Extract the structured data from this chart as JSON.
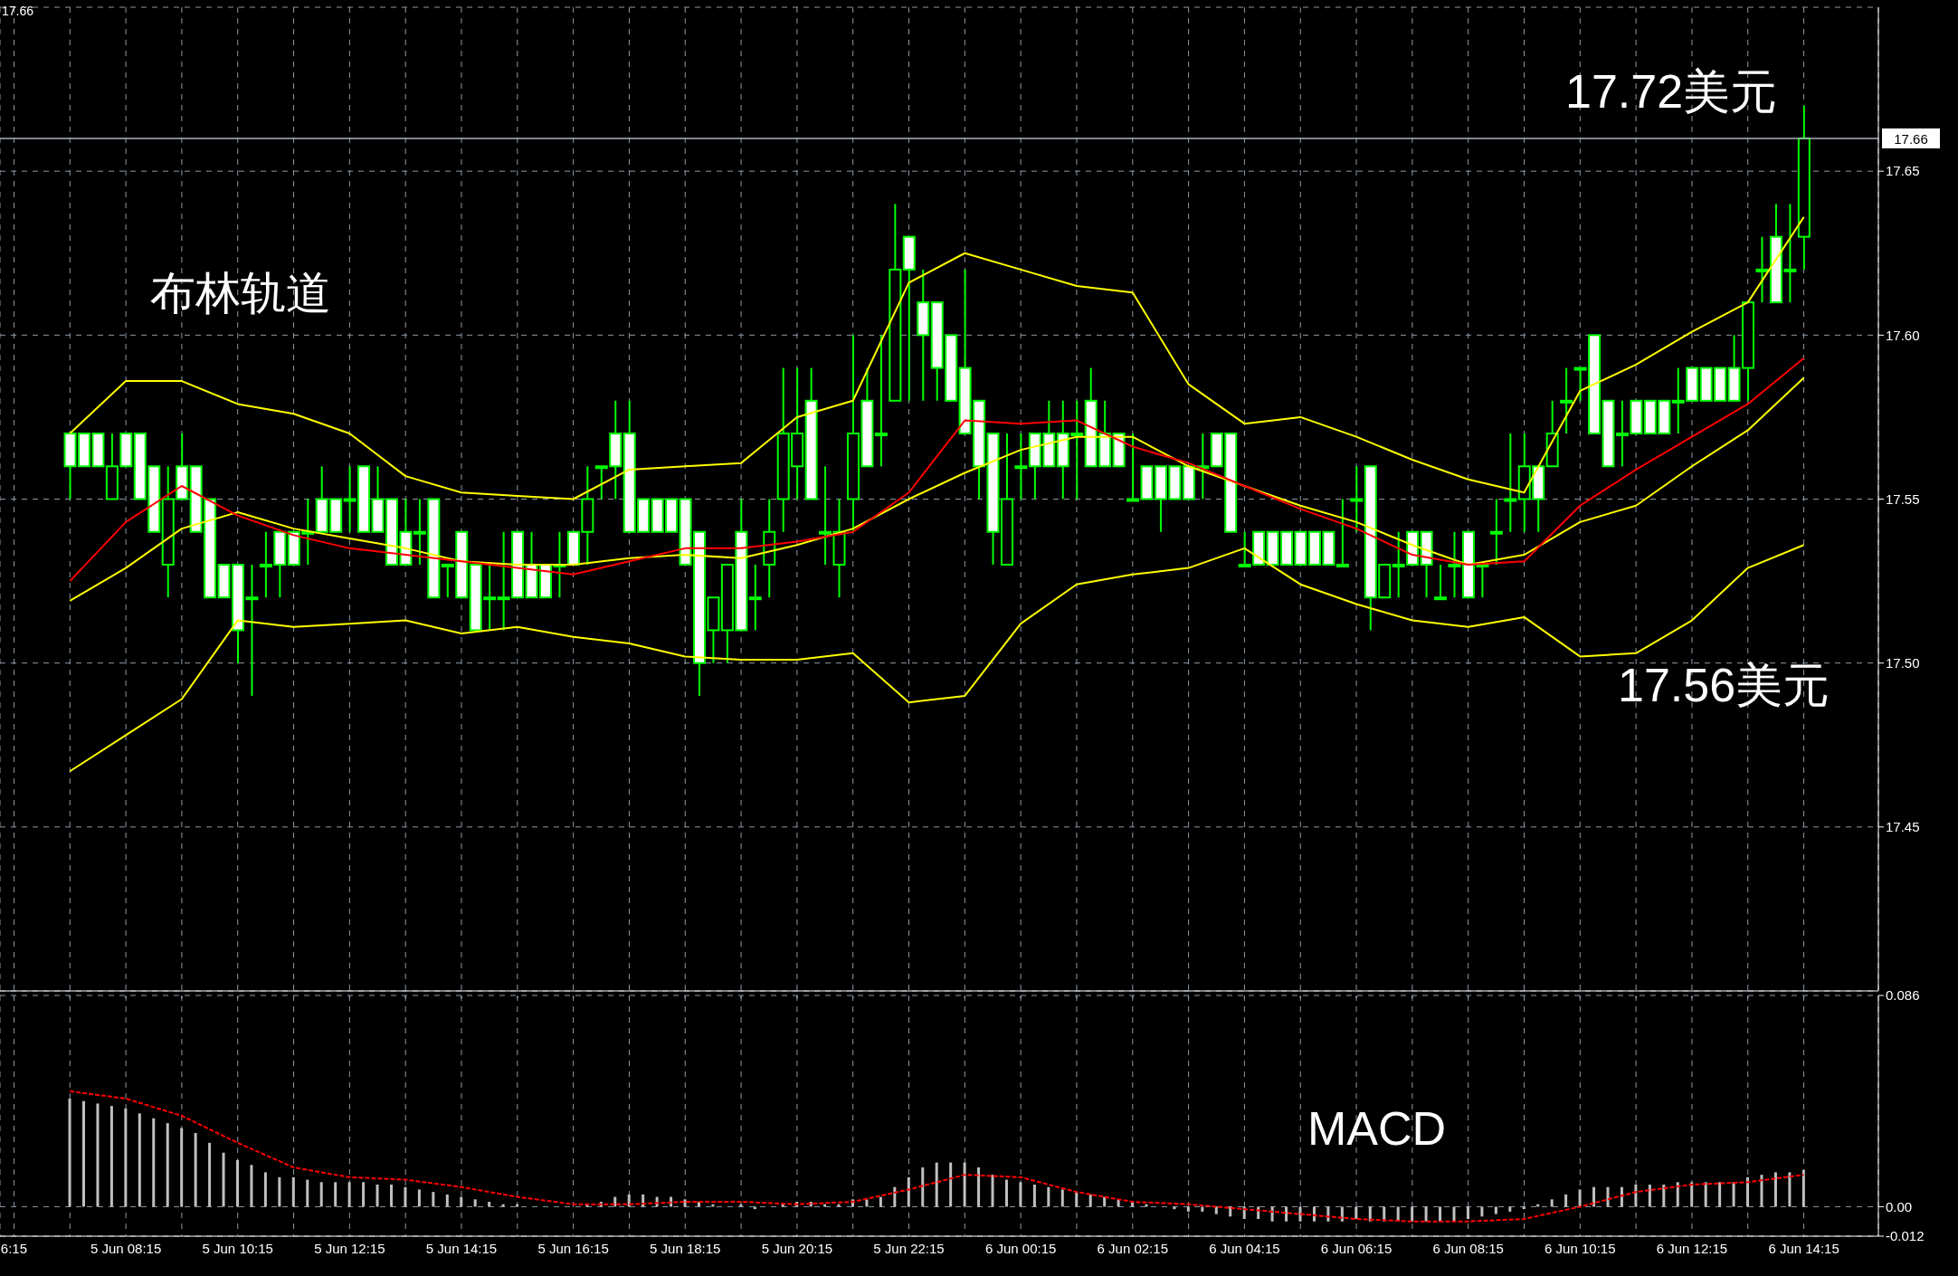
{
  "chart_data": [
    {
      "type": "candlestick",
      "color": "#00ff00",
      "x": [
        "--06-05T07:15",
        "--06-05T07:30",
        "--06-05T07:45",
        "--06-05T08:00",
        "--06-05T08:15",
        "--06-05T08:30",
        "--06-05T08:45",
        "--06-05T09:00",
        "--06-05T09:15",
        "--06-05T09:30",
        "--06-05T09:45",
        "--06-05T10:00",
        "--06-05T10:15",
        "--06-05T10:30",
        "--06-05T10:45",
        "--06-05T11:00",
        "--06-05T11:15",
        "--06-05T11:30",
        "--06-05T11:45",
        "--06-05T12:00",
        "--06-05T12:15",
        "--06-05T12:30",
        "--06-05T12:45",
        "--06-05T13:00",
        "--06-05T13:15",
        "--06-05T13:30",
        "--06-05T13:45",
        "--06-05T14:00",
        "--06-05T14:15",
        "--06-05T14:30",
        "--06-05T14:45",
        "--06-05T15:00",
        "--06-05T15:15",
        "--06-05T15:30",
        "--06-05T15:45",
        "--06-05T16:00",
        "--06-05T16:15",
        "--06-05T16:30",
        "--06-05T16:45",
        "--06-05T17:00",
        "--06-05T17:15",
        "--06-05T17:30",
        "--06-05T17:45",
        "--06-05T18:00",
        "--06-05T18:15",
        "--06-05T18:30",
        "--06-05T18:45",
        "--06-05T19:00",
        "--06-05T19:15",
        "--06-05T19:30",
        "--06-05T19:45",
        "--06-05T20:00",
        "--06-05T20:15",
        "--06-05T20:30",
        "--06-05T20:45",
        "--06-05T21:00",
        "--06-05T21:15",
        "--06-05T21:30",
        "--06-05T21:45",
        "--06-05T22:00",
        "--06-05T22:15",
        "--06-05T22:30",
        "--06-05T22:45",
        "--06-05T23:00",
        "--06-05T23:15",
        "--06-05T23:30",
        "--06-05T23:45",
        "--06-06T00:00",
        "--06-06T00:15",
        "--06-06T00:30",
        "--06-06T00:45",
        "--06-06T01:00",
        "--06-06T01:15",
        "--06-06T01:30",
        "--06-06T01:45",
        "--06-06T02:00",
        "--06-06T02:15",
        "--06-06T02:30",
        "--06-06T02:45",
        "--06-06T03:00",
        "--06-06T03:15",
        "--06-06T03:30",
        "--06-06T03:45",
        "--06-06T04:00",
        "--06-06T04:15",
        "--06-06T04:30",
        "--06-06T04:45",
        "--06-06T05:00",
        "--06-06T05:15",
        "--06-06T05:30",
        "--06-06T05:45",
        "--06-06T06:00",
        "--06-06T06:15",
        "--06-06T06:30",
        "--06-06T06:45",
        "--06-06T07:00",
        "--06-06T07:15",
        "--06-06T07:30",
        "--06-06T07:45",
        "--06-06T08:00",
        "--06-06T08:15",
        "--06-06T08:30",
        "--06-06T08:45",
        "--06-06T09:00",
        "--06-06T09:15",
        "--06-06T09:30",
        "--06-06T09:45",
        "--06-06T10:00",
        "--06-06T10:15",
        "--06-06T10:30",
        "--06-06T10:45",
        "--06-06T11:00",
        "--06-06T11:15",
        "--06-06T11:30",
        "--06-06T11:45",
        "--06-06T12:00",
        "--06-06T12:15",
        "--06-06T12:30",
        "--06-06T12:45",
        "--06-06T13:00",
        "--06-06T13:15",
        "--06-06T13:30",
        "--06-06T13:45",
        "--06-06T14:00",
        "--06-06T14:15"
      ],
      "ohlc": [
        [
          17.57,
          17.57,
          17.55,
          17.56
        ],
        [
          17.57,
          17.57,
          17.56,
          17.56
        ],
        [
          17.57,
          17.57,
          17.56,
          17.56
        ],
        [
          17.55,
          17.57,
          17.55,
          17.56
        ],
        [
          17.57,
          17.57,
          17.56,
          17.56
        ],
        [
          17.57,
          17.57,
          17.55,
          17.55
        ],
        [
          17.56,
          17.56,
          17.54,
          17.54
        ],
        [
          17.53,
          17.56,
          17.52,
          17.55
        ],
        [
          17.56,
          17.57,
          17.55,
          17.55
        ],
        [
          17.56,
          17.56,
          17.54,
          17.54
        ],
        [
          17.55,
          17.55,
          17.52,
          17.52
        ],
        [
          17.53,
          17.53,
          17.52,
          17.52
        ],
        [
          17.53,
          17.53,
          17.5,
          17.51
        ],
        [
          17.52,
          17.53,
          17.49,
          17.52
        ],
        [
          17.53,
          17.54,
          17.52,
          17.53
        ],
        [
          17.54,
          17.54,
          17.52,
          17.53
        ],
        [
          17.54,
          17.54,
          17.53,
          17.53
        ],
        [
          17.54,
          17.55,
          17.53,
          17.54
        ],
        [
          17.55,
          17.56,
          17.54,
          17.54
        ],
        [
          17.55,
          17.55,
          17.54,
          17.54
        ],
        [
          17.55,
          17.56,
          17.54,
          17.55
        ],
        [
          17.56,
          17.56,
          17.54,
          17.54
        ],
        [
          17.55,
          17.56,
          17.54,
          17.54
        ],
        [
          17.55,
          17.55,
          17.53,
          17.53
        ],
        [
          17.54,
          17.55,
          17.53,
          17.53
        ],
        [
          17.54,
          17.55,
          17.53,
          17.54
        ],
        [
          17.55,
          17.55,
          17.52,
          17.52
        ],
        [
          17.53,
          17.53,
          17.52,
          17.53
        ],
        [
          17.54,
          17.54,
          17.52,
          17.52
        ],
        [
          17.53,
          17.53,
          17.51,
          17.51
        ],
        [
          17.52,
          17.53,
          17.51,
          17.52
        ],
        [
          17.52,
          17.54,
          17.51,
          17.52
        ],
        [
          17.54,
          17.54,
          17.52,
          17.52
        ],
        [
          17.53,
          17.54,
          17.52,
          17.52
        ],
        [
          17.53,
          17.53,
          17.52,
          17.52
        ],
        [
          17.53,
          17.54,
          17.52,
          17.53
        ],
        [
          17.54,
          17.54,
          17.53,
          17.53
        ],
        [
          17.54,
          17.56,
          17.53,
          17.55
        ],
        [
          17.56,
          17.56,
          17.55,
          17.56
        ],
        [
          17.57,
          17.58,
          17.55,
          17.56
        ],
        [
          17.57,
          17.58,
          17.54,
          17.54
        ],
        [
          17.55,
          17.55,
          17.54,
          17.54
        ],
        [
          17.55,
          17.55,
          17.54,
          17.54
        ],
        [
          17.55,
          17.55,
          17.54,
          17.54
        ],
        [
          17.55,
          17.55,
          17.53,
          17.53
        ],
        [
          17.54,
          17.54,
          17.49,
          17.5
        ],
        [
          17.51,
          17.52,
          17.5,
          17.52
        ],
        [
          17.51,
          17.53,
          17.5,
          17.53
        ],
        [
          17.54,
          17.55,
          17.51,
          17.51
        ],
        [
          17.52,
          17.53,
          17.51,
          17.52
        ],
        [
          17.53,
          17.55,
          17.52,
          17.54
        ],
        [
          17.55,
          17.59,
          17.54,
          17.57
        ],
        [
          17.56,
          17.59,
          17.55,
          17.57
        ],
        [
          17.58,
          17.59,
          17.55,
          17.55
        ],
        [
          17.54,
          17.56,
          17.53,
          17.54
        ],
        [
          17.53,
          17.55,
          17.52,
          17.54
        ],
        [
          17.55,
          17.6,
          17.54,
          17.57
        ],
        [
          17.58,
          17.59,
          17.56,
          17.56
        ],
        [
          17.57,
          17.6,
          17.56,
          17.57
        ],
        [
          17.58,
          17.64,
          17.58,
          17.62
        ],
        [
          17.63,
          17.63,
          17.58,
          17.62
        ],
        [
          17.61,
          17.62,
          17.58,
          17.6
        ],
        [
          17.61,
          17.61,
          17.58,
          17.59
        ],
        [
          17.6,
          17.6,
          17.58,
          17.58
        ],
        [
          17.59,
          17.62,
          17.57,
          17.57
        ],
        [
          17.58,
          17.58,
          17.55,
          17.56
        ],
        [
          17.57,
          17.57,
          17.53,
          17.54
        ],
        [
          17.53,
          17.57,
          17.53,
          17.55
        ],
        [
          17.56,
          17.57,
          17.55,
          17.56
        ],
        [
          17.57,
          17.57,
          17.55,
          17.56
        ],
        [
          17.57,
          17.58,
          17.56,
          17.56
        ],
        [
          17.57,
          17.58,
          17.55,
          17.56
        ],
        [
          17.57,
          17.58,
          17.55,
          17.57
        ],
        [
          17.58,
          17.59,
          17.56,
          17.56
        ],
        [
          17.57,
          17.58,
          17.56,
          17.56
        ],
        [
          17.57,
          17.57,
          17.56,
          17.56
        ],
        [
          17.55,
          17.57,
          17.55,
          17.55
        ],
        [
          17.56,
          17.56,
          17.55,
          17.55
        ],
        [
          17.56,
          17.56,
          17.54,
          17.55
        ],
        [
          17.56,
          17.56,
          17.55,
          17.55
        ],
        [
          17.56,
          17.56,
          17.55,
          17.55
        ],
        [
          17.56,
          17.57,
          17.55,
          17.56
        ],
        [
          17.57,
          17.57,
          17.56,
          17.56
        ],
        [
          17.57,
          17.57,
          17.54,
          17.54
        ],
        [
          17.53,
          17.54,
          17.53,
          17.53
        ],
        [
          17.54,
          17.54,
          17.53,
          17.53
        ],
        [
          17.54,
          17.54,
          17.53,
          17.53
        ],
        [
          17.54,
          17.54,
          17.53,
          17.53
        ],
        [
          17.54,
          17.54,
          17.53,
          17.53
        ],
        [
          17.54,
          17.54,
          17.53,
          17.53
        ],
        [
          17.54,
          17.54,
          17.53,
          17.53
        ],
        [
          17.53,
          17.55,
          17.53,
          17.53
        ],
        [
          17.55,
          17.56,
          17.54,
          17.55
        ],
        [
          17.56,
          17.56,
          17.51,
          17.52
        ],
        [
          17.52,
          17.53,
          17.52,
          17.53
        ],
        [
          17.53,
          17.54,
          17.52,
          17.53
        ],
        [
          17.54,
          17.54,
          17.53,
          17.53
        ],
        [
          17.54,
          17.54,
          17.52,
          17.53
        ],
        [
          17.52,
          17.53,
          17.52,
          17.52
        ],
        [
          17.53,
          17.54,
          17.52,
          17.53
        ],
        [
          17.54,
          17.54,
          17.52,
          17.52
        ],
        [
          17.53,
          17.53,
          17.52,
          17.53
        ],
        [
          17.54,
          17.55,
          17.53,
          17.54
        ],
        [
          17.55,
          17.57,
          17.54,
          17.55
        ],
        [
          17.55,
          17.57,
          17.54,
          17.56
        ],
        [
          17.56,
          17.56,
          17.54,
          17.55
        ],
        [
          17.56,
          17.58,
          17.56,
          17.57
        ],
        [
          17.58,
          17.59,
          17.57,
          17.58
        ],
        [
          17.59,
          17.59,
          17.58,
          17.59
        ],
        [
          17.6,
          17.6,
          17.57,
          17.57
        ],
        [
          17.58,
          17.58,
          17.56,
          17.56
        ],
        [
          17.57,
          17.58,
          17.56,
          17.57
        ],
        [
          17.58,
          17.58,
          17.57,
          17.57
        ],
        [
          17.58,
          17.58,
          17.57,
          17.57
        ],
        [
          17.58,
          17.58,
          17.57,
          17.57
        ],
        [
          17.58,
          17.59,
          17.57,
          17.58
        ],
        [
          17.59,
          17.59,
          17.58,
          17.58
        ],
        [
          17.59,
          17.59,
          17.58,
          17.58
        ],
        [
          17.59,
          17.59,
          17.58,
          17.58
        ],
        [
          17.59,
          17.6,
          17.58,
          17.58
        ],
        [
          17.59,
          17.61,
          17.58,
          17.61
        ],
        [
          17.62,
          17.63,
          17.61,
          17.62
        ],
        [
          17.63,
          17.64,
          17.61,
          17.61
        ],
        [
          17.62,
          17.64,
          17.61,
          17.62
        ],
        [
          17.63,
          17.67,
          17.62,
          17.66
        ]
      ],
      "series": [
        {
          "type": "line",
          "color": "#ffff00",
          "x": [
            "--06-05T07:15",
            "--06-05T08:15",
            "--06-05T09:15",
            "--06-05T10:15",
            "--06-05T11:15",
            "--06-05T12:15",
            "--06-05T13:15",
            "--06-05T14:15",
            "--06-05T15:15",
            "--06-05T16:15",
            "--06-05T17:15",
            "--06-05T18:15",
            "--06-05T19:15",
            "--06-05T20:15",
            "--06-05T21:15",
            "--06-05T22:15",
            "--06-05T23:15",
            "--06-06T00:15",
            "--06-06T01:15",
            "--06-06T02:15",
            "--06-06T03:15",
            "--06-06T04:15",
            "--06-06T05:15",
            "--06-06T06:15",
            "--06-06T07:15",
            "--06-06T08:15",
            "--06-06T09:15",
            "--06-06T10:15",
            "--06-06T11:15",
            "--06-06T12:15",
            "--06-06T13:15",
            "--06-06T14:15"
          ],
          "values": [
            17.57,
            17.586,
            17.586,
            17.579,
            17.576,
            17.57,
            17.557,
            17.552,
            17.551,
            17.55,
            17.559,
            17.56,
            17.561,
            17.575,
            17.58,
            17.616,
            17.625,
            17.62,
            17.615,
            17.613,
            17.585,
            17.573,
            17.575,
            17.569,
            17.562,
            17.556,
            17.552,
            17.583,
            17.591,
            17.601,
            17.61,
            17.636
          ]
        },
        {
          "type": "line",
          "color": "#ffff00",
          "x": [
            "--06-05T07:15",
            "--06-05T08:15",
            "--06-05T09:15",
            "--06-05T10:15",
            "--06-05T11:15",
            "--06-05T12:15",
            "--06-05T13:15",
            "--06-05T14:15",
            "--06-05T15:15",
            "--06-05T16:15",
            "--06-05T17:15",
            "--06-05T18:15",
            "--06-05T19:15",
            "--06-05T20:15",
            "--06-05T21:15",
            "--06-05T22:15",
            "--06-05T23:15",
            "--06-06T00:15",
            "--06-06T01:15",
            "--06-06T02:15",
            "--06-06T03:15",
            "--06-06T04:15",
            "--06-06T05:15",
            "--06-06T06:15",
            "--06-06T07:15",
            "--06-06T08:15",
            "--06-06T09:15",
            "--06-06T10:15",
            "--06-06T11:15",
            "--06-06T12:15",
            "--06-06T13:15",
            "--06-06T14:15"
          ],
          "values": [
            17.519,
            17.529,
            17.541,
            17.546,
            17.541,
            17.538,
            17.535,
            17.531,
            17.53,
            17.53,
            17.532,
            17.533,
            17.532,
            17.536,
            17.541,
            17.55,
            17.558,
            17.565,
            17.569,
            17.569,
            17.56,
            17.554,
            17.548,
            17.543,
            17.536,
            17.53,
            17.533,
            17.543,
            17.548,
            17.56,
            17.571,
            17.587
          ]
        },
        {
          "type": "line",
          "color": "#ffff00",
          "x": [
            "--06-05T07:15",
            "--06-05T08:15",
            "--06-05T09:15",
            "--06-05T10:15",
            "--06-05T11:15",
            "--06-05T12:15",
            "--06-05T13:15",
            "--06-05T14:15",
            "--06-05T15:15",
            "--06-05T16:15",
            "--06-05T17:15",
            "--06-05T18:15",
            "--06-05T19:15",
            "--06-05T20:15",
            "--06-05T21:15",
            "--06-05T22:15",
            "--06-05T23:15",
            "--06-06T00:15",
            "--06-06T01:15",
            "--06-06T02:15",
            "--06-06T03:15",
            "--06-06T04:15",
            "--06-06T05:15",
            "--06-06T06:15",
            "--06-06T07:15",
            "--06-06T08:15",
            "--06-06T09:15",
            "--06-06T10:15",
            "--06-06T11:15",
            "--06-06T12:15",
            "--06-06T13:15",
            "--06-06T14:15"
          ],
          "values": [
            17.467,
            17.478,
            17.489,
            17.513,
            17.511,
            17.512,
            17.513,
            17.509,
            17.511,
            17.508,
            17.506,
            17.502,
            17.501,
            17.501,
            17.503,
            17.488,
            17.49,
            17.512,
            17.524,
            17.527,
            17.529,
            17.535,
            17.524,
            17.518,
            17.513,
            17.511,
            17.514,
            17.502,
            17.503,
            17.513,
            17.529,
            17.536
          ]
        },
        {
          "type": "line",
          "color": "#ff0000",
          "x": [
            "--06-05T07:15",
            "--06-05T08:15",
            "--06-05T09:15",
            "--06-05T10:15",
            "--06-05T11:15",
            "--06-05T12:15",
            "--06-05T13:15",
            "--06-05T14:15",
            "--06-05T15:15",
            "--06-05T16:15",
            "--06-05T17:15",
            "--06-05T18:15",
            "--06-05T19:15",
            "--06-05T20:15",
            "--06-05T21:15",
            "--06-05T22:15",
            "--06-05T23:15",
            "--06-06T00:15",
            "--06-06T01:15",
            "--06-06T02:15",
            "--06-06T03:15",
            "--06-06T04:15",
            "--06-06T05:15",
            "--06-06T06:15",
            "--06-06T07:15",
            "--06-06T08:15",
            "--06-06T09:15",
            "--06-06T10:15",
            "--06-06T11:15",
            "--06-06T12:15",
            "--06-06T13:15",
            "--06-06T14:15"
          ],
          "values": [
            17.525,
            17.543,
            17.554,
            17.545,
            17.539,
            17.535,
            17.533,
            17.531,
            17.529,
            17.527,
            17.531,
            17.535,
            17.535,
            17.537,
            17.54,
            17.552,
            17.574,
            17.573,
            17.574,
            17.566,
            17.561,
            17.554,
            17.547,
            17.541,
            17.533,
            17.53,
            17.531,
            17.548,
            17.559,
            17.569,
            17.579,
            17.593
          ]
        }
      ],
      "xlim": [
        "--06-05T06:00",
        "--06-06T15:35"
      ],
      "xticks": [
        {
          "value": "--06-05T06:15",
          "label": null
        },
        {
          "value": "--06-05T07:15",
          "label": null
        },
        {
          "value": "--06-05T08:15",
          "label": null
        },
        {
          "value": "--06-05T09:15",
          "label": null
        },
        {
          "value": "--06-05T10:15",
          "label": null
        },
        {
          "value": "--06-05T11:15",
          "label": null
        },
        {
          "value": "--06-05T12:15",
          "label": null
        },
        {
          "value": "--06-05T13:15",
          "label": null
        },
        {
          "value": "--06-05T14:15",
          "label": null
        },
        {
          "value": "--06-05T15:15",
          "label": null
        },
        {
          "value": "--06-05T16:15",
          "label": null
        },
        {
          "value": "--06-05T17:15",
          "label": null
        },
        {
          "value": "--06-05T18:15",
          "label": null
        },
        {
          "value": "--06-05T19:15",
          "label": null
        },
        {
          "value": "--06-05T20:15",
          "label": null
        },
        {
          "value": "--06-05T21:15",
          "label": null
        },
        {
          "value": "--06-05T22:15",
          "label": null
        },
        {
          "value": "--06-05T23:15",
          "label": null
        },
        {
          "value": "--06-06T00:15",
          "label": null
        },
        {
          "value": "--06-06T01:15",
          "label": null
        },
        {
          "value": "--06-06T02:15",
          "label": null
        },
        {
          "value": "--06-06T03:15",
          "label": null
        },
        {
          "value": "--06-06T04:15",
          "label": null
        },
        {
          "value": "--06-06T05:15",
          "label": null
        },
        {
          "value": "--06-06T06:15",
          "label": null
        },
        {
          "value": "--06-06T07:15",
          "label": null
        },
        {
          "value": "--06-06T08:15",
          "label": null
        },
        {
          "value": "--06-06T09:15",
          "label": null
        },
        {
          "value": "--06-06T10:15",
          "label": null
        },
        {
          "value": "--06-06T11:15",
          "label": null
        },
        {
          "value": "--06-06T12:15",
          "label": null
        },
        {
          "value": "--06-06T13:15",
          "label": null
        },
        {
          "value": "--06-06T14:15",
          "label": null
        }
      ],
      "ylim": [
        17.4,
        17.7
      ],
      "yticks": [
        17.45,
        {
          "value": 17.5,
          "label": "17.50"
        },
        17.55,
        {
          "value": 17.6,
          "label": "17.60"
        },
        17.65
      ],
      "tick_labels": "y",
      "grid": true,
      "ref_lines": [
        {
          "axis": "y",
          "value": 17.66,
          "label": "17.66",
          "color": "#a8b0b8"
        }
      ],
      "annotations": [
        "17.66",
        "布林轨道",
        "17.72美元",
        "17.56美元"
      ]
    },
    {
      "type": "bar",
      "x": [
        "--06-05T07:15",
        "--06-05T07:30",
        "--06-05T07:45",
        "--06-05T08:00",
        "--06-05T08:15",
        "--06-05T08:30",
        "--06-05T08:45",
        "--06-05T09:00",
        "--06-05T09:15",
        "--06-05T09:30",
        "--06-05T09:45",
        "--06-05T10:00",
        "--06-05T10:15",
        "--06-05T10:30",
        "--06-05T10:45",
        "--06-05T11:00",
        "--06-05T11:15",
        "--06-05T11:30",
        "--06-05T11:45",
        "--06-05T12:00",
        "--06-05T12:15",
        "--06-05T12:30",
        "--06-05T12:45",
        "--06-05T13:00",
        "--06-05T13:15",
        "--06-05T13:30",
        "--06-05T13:45",
        "--06-05T14:00",
        "--06-05T14:15",
        "--06-05T14:30",
        "--06-05T14:45",
        "--06-05T15:00",
        "--06-05T15:15",
        "--06-05T15:30",
        "--06-05T15:45",
        "--06-05T16:00",
        "--06-05T16:15",
        "--06-05T16:30",
        "--06-05T16:45",
        "--06-05T17:00",
        "--06-05T17:15",
        "--06-05T17:30",
        "--06-05T17:45",
        "--06-05T18:00",
        "--06-05T18:15",
        "--06-05T18:30",
        "--06-05T18:45",
        "--06-05T19:00",
        "--06-05T19:15",
        "--06-05T19:30",
        "--06-05T19:45",
        "--06-05T20:00",
        "--06-05T20:15",
        "--06-05T20:30",
        "--06-05T20:45",
        "--06-05T21:00",
        "--06-05T21:15",
        "--06-05T21:30",
        "--06-05T21:45",
        "--06-05T22:00",
        "--06-05T22:15",
        "--06-05T22:30",
        "--06-05T22:45",
        "--06-05T23:00",
        "--06-05T23:15",
        "--06-05T23:30",
        "--06-05T23:45",
        "--06-06T00:00",
        "--06-06T00:15",
        "--06-06T00:30",
        "--06-06T00:45",
        "--06-06T01:00",
        "--06-06T01:15",
        "--06-06T01:30",
        "--06-06T01:45",
        "--06-06T02:00",
        "--06-06T02:15",
        "--06-06T02:30",
        "--06-06T02:45",
        "--06-06T03:00",
        "--06-06T03:15",
        "--06-06T03:30",
        "--06-06T03:45",
        "--06-06T04:00",
        "--06-06T04:15",
        "--06-06T04:30",
        "--06-06T04:45",
        "--06-06T05:00",
        "--06-06T05:15",
        "--06-06T05:30",
        "--06-06T05:45",
        "--06-06T06:00",
        "--06-06T06:15",
        "--06-06T06:30",
        "--06-06T06:45",
        "--06-06T07:00",
        "--06-06T07:15",
        "--06-06T07:30",
        "--06-06T07:45",
        "--06-06T08:00",
        "--06-06T08:15",
        "--06-06T08:30",
        "--06-06T08:45",
        "--06-06T09:00",
        "--06-06T09:15",
        "--06-06T09:30",
        "--06-06T09:45",
        "--06-06T10:00",
        "--06-06T10:15",
        "--06-06T10:30",
        "--06-06T10:45",
        "--06-06T11:00",
        "--06-06T11:15",
        "--06-06T11:30",
        "--06-06T11:45",
        "--06-06T12:00",
        "--06-06T12:15",
        "--06-06T12:30",
        "--06-06T12:45",
        "--06-06T13:00",
        "--06-06T13:15",
        "--06-06T13:30",
        "--06-06T13:45",
        "--06-06T14:00",
        "--06-06T14:15"
      ],
      "series": [
        {
          "type": "bar",
          "color": "#c0c0c0",
          "values": [
            0.044,
            0.043,
            0.042,
            0.041,
            0.04,
            0.038,
            0.036,
            0.034,
            0.032,
            0.03,
            0.026,
            0.022,
            0.019,
            0.017,
            0.014,
            0.012,
            0.012,
            0.011,
            0.01,
            0.01,
            0.01,
            0.01,
            0.009,
            0.009,
            0.008,
            0.007,
            0.006,
            0.005,
            0.004,
            0.003,
            0.002,
            0.001,
            0.001,
            0,
            0,
            0,
            0,
            0.001,
            0.002,
            0.004,
            0.005,
            0.005,
            0.004,
            0.004,
            0.003,
            0.002,
            0.001,
            0,
            0.001,
            -0.001,
            0,
            0.001,
            0.002,
            0.002,
            0.001,
            0.001,
            0.003,
            0.003,
            0.004,
            0.008,
            0.012,
            0.016,
            0.018,
            0.018,
            0.018,
            0.016,
            0.013,
            0.011,
            0.01,
            0.009,
            0.008,
            0.007,
            0.006,
            0.005,
            0.004,
            0.003,
            0.002,
            0.001,
            0,
            -0.001,
            -0.002,
            -0.002,
            -0.003,
            -0.004,
            -0.005,
            -0.005,
            -0.006,
            -0.006,
            -0.006,
            -0.006,
            -0.006,
            -0.006,
            -0.005,
            -0.006,
            -0.006,
            -0.006,
            -0.006,
            -0.006,
            -0.006,
            -0.006,
            -0.005,
            -0.004,
            -0.003,
            -0.002,
            -0.001,
            0.001,
            0.003,
            0.005,
            0.007,
            0.008,
            0.008,
            0.008,
            0.009,
            0.009,
            0.009,
            0.01,
            0.01,
            0.01,
            0.01,
            0.01,
            0.012,
            0.013,
            0.014,
            0.014,
            0.015
          ]
        },
        {
          "type": "line",
          "color": "#ff0000",
          "line_style": "dashed",
          "x": [
            "--06-05T07:15",
            "--06-05T08:15",
            "--06-05T09:15",
            "--06-05T10:15",
            "--06-05T11:15",
            "--06-05T12:15",
            "--06-05T13:15",
            "--06-05T14:15",
            "--06-05T15:15",
            "--06-05T16:15",
            "--06-05T17:15",
            "--06-05T18:15",
            "--06-05T19:15",
            "--06-05T20:15",
            "--06-05T21:15",
            "--06-05T22:15",
            "--06-05T23:15",
            "--06-06T00:15",
            "--06-06T01:15",
            "--06-06T02:15",
            "--06-06T03:15",
            "--06-06T04:15",
            "--06-06T05:15",
            "--06-06T06:15",
            "--06-06T07:15",
            "--06-06T08:15",
            "--06-06T09:15",
            "--06-06T10:15",
            "--06-06T11:15",
            "--06-06T12:15",
            "--06-06T13:15",
            "--06-06T14:15"
          ],
          "values": [
            0.047,
            0.044,
            0.037,
            0.026,
            0.016,
            0.012,
            0.011,
            0.008,
            0.004,
            0.001,
            0.001,
            0.002,
            0.002,
            0.001,
            0.002,
            0.007,
            0.013,
            0.012,
            0.006,
            0.002,
            0.001,
            -0.001,
            -0.003,
            -0.005,
            -0.006,
            -0.006,
            -0.005,
            0,
            0.006,
            0.009,
            0.01,
            0.013
          ]
        }
      ],
      "xlim": [
        "--06-05T06:00",
        "--06-06T15:35"
      ],
      "xticks": [
        {
          "value": "--06-05T06:15",
          "label": "6:15"
        },
        {
          "value": "--06-05T07:15",
          "label": null
        },
        {
          "value": "--06-05T08:15",
          "label": "5 Jun 08:15"
        },
        {
          "value": "--06-05T09:15",
          "label": null
        },
        {
          "value": "--06-05T10:15",
          "label": "5 Jun 10:15"
        },
        {
          "value": "--06-05T11:15",
          "label": null
        },
        {
          "value": "--06-05T12:15",
          "label": "5 Jun 12:15"
        },
        {
          "value": "--06-05T13:15",
          "label": null
        },
        {
          "value": "--06-05T14:15",
          "label": "5 Jun 14:15"
        },
        {
          "value": "--06-05T15:15",
          "label": null
        },
        {
          "value": "--06-05T16:15",
          "label": "5 Jun 16:15"
        },
        {
          "value": "--06-05T17:15",
          "label": null
        },
        {
          "value": "--06-05T18:15",
          "label": "5 Jun 18:15"
        },
        {
          "value": "--06-05T19:15",
          "label": null
        },
        {
          "value": "--06-05T20:15",
          "label": "5 Jun 20:15"
        },
        {
          "value": "--06-05T21:15",
          "label": null
        },
        {
          "value": "--06-05T22:15",
          "label": "5 Jun 22:15"
        },
        {
          "value": "--06-05T23:15",
          "label": null
        },
        {
          "value": "--06-06T00:15",
          "label": "6 Jun 00:15"
        },
        {
          "value": "--06-06T01:15",
          "label": null
        },
        {
          "value": "--06-06T02:15",
          "label": "6 Jun 02:15"
        },
        {
          "value": "--06-06T03:15",
          "label": null
        },
        {
          "value": "--06-06T04:15",
          "label": "6 Jun 04:15"
        },
        {
          "value": "--06-06T05:15",
          "label": null
        },
        {
          "value": "--06-06T06:15",
          "label": "6 Jun 06:15"
        },
        {
          "value": "--06-06T07:15",
          "label": null
        },
        {
          "value": "--06-06T08:15",
          "label": "6 Jun 08:15"
        },
        {
          "value": "--06-06T09:15",
          "label": null
        },
        {
          "value": "--06-06T10:15",
          "label": "6 Jun 10:15"
        },
        {
          "value": "--06-06T11:15",
          "label": null
        },
        {
          "value": "--06-06T12:15",
          "label": "6 Jun 12:15"
        },
        {
          "value": "--06-06T13:15",
          "label": null
        },
        {
          "value": "--06-06T14:15",
          "label": "6 Jun 14:15"
        }
      ],
      "ylim": [
        -0.012,
        0.086
      ],
      "yticks": [
        0.086,
        {
          "value": 0,
          "label": "0.00"
        },
        -0.012
      ],
      "grid": true,
      "annotations": [
        "MACD"
      ]
    }
  ]
}
